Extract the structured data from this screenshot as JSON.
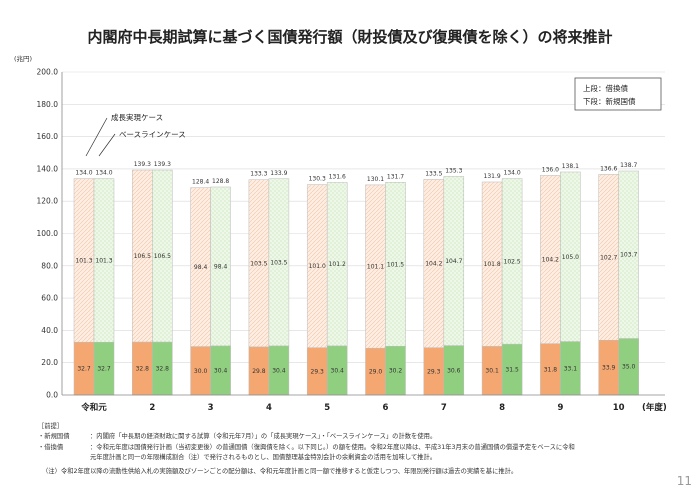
{
  "title": "内閣府中長期試算に基づく国債発行額（財投債及び復興債を除く）の将来推計",
  "chart_data": {
    "type": "bar",
    "stacked": true,
    "unit_label": "(兆円)",
    "ylim": [
      0,
      200
    ],
    "yticks": [
      "0.0",
      "20.0",
      "40.0",
      "60.0",
      "80.0",
      "100.0",
      "120.0",
      "140.0",
      "160.0",
      "180.0",
      "200.0"
    ],
    "categories": [
      "令和元",
      "2",
      "3",
      "4",
      "5",
      "6",
      "7",
      "8",
      "9",
      "10"
    ],
    "x_axis_suffix": "(年度)",
    "series": [
      {
        "name": "成長実現ケース",
        "lower": [
          32.7,
          32.8,
          30.0,
          29.8,
          29.3,
          29.0,
          29.3,
          30.1,
          31.8,
          33.9
        ],
        "upper": [
          101.3,
          106.5,
          98.4,
          103.5,
          101.0,
          101.1,
          104.2,
          101.8,
          104.2,
          102.7
        ],
        "total": [
          134.0,
          139.3,
          128.4,
          133.3,
          130.3,
          130.1,
          133.5,
          131.9,
          136.0,
          136.6
        ],
        "lower_color": "#f4a771",
        "upper_color": "#fdeee3"
      },
      {
        "name": "ベースラインケース",
        "lower": [
          32.7,
          32.8,
          30.4,
          30.4,
          30.4,
          30.2,
          30.6,
          31.5,
          33.1,
          35.0
        ],
        "upper": [
          101.3,
          106.5,
          98.4,
          103.5,
          101.2,
          101.5,
          104.7,
          102.5,
          105.0,
          103.7
        ],
        "total": [
          134.0,
          139.3,
          128.8,
          133.9,
          131.6,
          131.7,
          135.3,
          134.0,
          138.1,
          138.7
        ],
        "lower_color": "#90cf80",
        "upper_color": "#eef8e8"
      }
    ],
    "legend": {
      "line1": "上段：借換債",
      "line2": "下段：新規国債"
    },
    "callouts": [
      "成長実現ケース",
      "ベースラインケース"
    ]
  },
  "notes": {
    "header": "［前提］",
    "items": [
      {
        "label": "・新規国債",
        "text": "：内閣府「中長期の経済財政に関する試算（令和元年7月）」の「成長実現ケース」・「ベースラインケース」の計数を使用。"
      },
      {
        "label": "・借換債",
        "text": "：令和元年度は国債発行計画（当初変更後）の普通国債（復興債を除く。以下同じ。）の額を使用。令和2年度以降は、平成31年3月末の普通国債の償還予定をベースに令和",
        "cont": "元年度計画と同一の年限構成割合（注）で発行されるものとし、国債整理基金特別会計の余剰資金の活用を加味して推計。"
      }
    ],
    "footnote": "（注）令和2年度以降の流動性供給入札の実施額及びゾーンごとの配分額は、令和元年度計画と同一額で推移すると仮定しつつ、年限別発行額は過去の実績を基に推計。"
  },
  "page_number": "11"
}
